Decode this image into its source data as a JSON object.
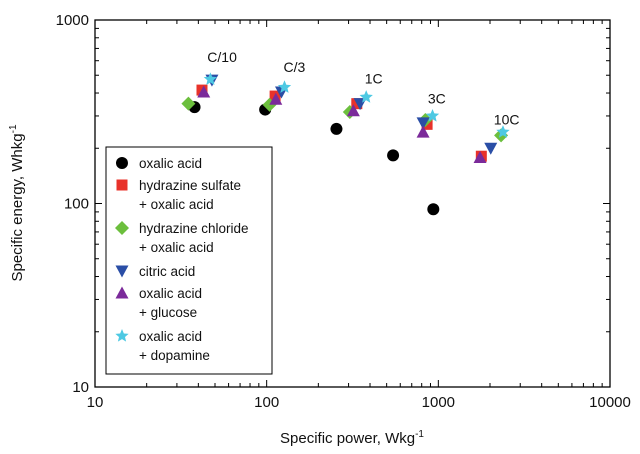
{
  "chart_data": {
    "type": "scatter",
    "x_scale": "log",
    "y_scale": "log",
    "xlim": [
      10,
      10000
    ],
    "ylim": [
      10,
      1000
    ],
    "x_ticks": [
      "10",
      "100",
      "1000",
      "10000"
    ],
    "y_ticks": [
      "10",
      "100",
      "1000"
    ],
    "grid": false,
    "legend_position": "left",
    "series": [
      {
        "label_lines": [
          "oxalic acid"
        ],
        "marker": "circle",
        "color": "#000000",
        "points": [
          [
            38,
            335
          ],
          [
            98,
            325
          ],
          [
            255,
            255
          ],
          [
            545,
            183
          ],
          [
            935,
            93
          ]
        ]
      },
      {
        "label_lines": [
          "hydrazine sulfate",
          "+ oxalic acid"
        ],
        "marker": "square",
        "color": "#e8322a",
        "points": [
          [
            42,
            415
          ],
          [
            112,
            385
          ],
          [
            335,
            350
          ],
          [
            860,
            270
          ],
          [
            1780,
            181
          ]
        ]
      },
      {
        "label_lines": [
          "hydrazine chloride",
          "+ oxalic acid"
        ],
        "marker": "diamond",
        "color": "#6cbf3d",
        "points": [
          [
            35,
            350
          ],
          [
            104,
            345
          ],
          [
            305,
            315
          ],
          [
            840,
            285
          ],
          [
            2320,
            235
          ]
        ]
      },
      {
        "label_lines": [
          "citric acid"
        ],
        "marker": "triangle-down",
        "color": "#2a4ea6",
        "points": [
          [
            48,
            470
          ],
          [
            122,
            405
          ],
          [
            350,
            350
          ],
          [
            815,
            275
          ],
          [
            2020,
            200
          ]
        ]
      },
      {
        "label_lines": [
          "oxalic acid",
          "+ glucose"
        ],
        "marker": "triangle-up",
        "color": "#7b2a9a",
        "points": [
          [
            43,
            405
          ],
          [
            113,
            370
          ],
          [
            320,
            320
          ],
          [
            815,
            245
          ],
          [
            1750,
            178
          ]
        ]
      },
      {
        "label_lines": [
          "oxalic acid",
          "+ dopamine"
        ],
        "marker": "star",
        "color": "#4ec9e3",
        "points": [
          [
            47,
            475
          ],
          [
            127,
            430
          ],
          [
            380,
            380
          ],
          [
            925,
            300
          ],
          [
            2380,
            245
          ]
        ]
      }
    ],
    "annotations": [
      {
        "text": "C/10",
        "x": 55,
        "y": 590
      },
      {
        "text": "C/3",
        "x": 145,
        "y": 520
      },
      {
        "text": "1C",
        "x": 420,
        "y": 450
      },
      {
        "text": "3C",
        "x": 980,
        "y": 350
      },
      {
        "text": "10C",
        "x": 2500,
        "y": 270
      }
    ],
    "xlabel": "Specific power, Wkg",
    "xlabel_sup": "-1",
    "ylabel": "Specific energy, Whkg",
    "ylabel_sup": "-1"
  }
}
